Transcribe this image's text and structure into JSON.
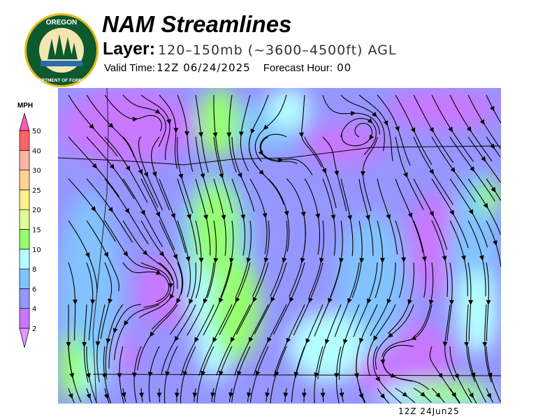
{
  "header": {
    "title": "NAM Streamlines",
    "layer_label": "Layer:",
    "layer_value": "120–150mb (~3600–4500ft) AGL",
    "valid_label": "Valid Time:",
    "valid_value": "12Z 06/24/2025",
    "forecast_hour_label": "Forecast Hour:",
    "forecast_hour_value": "00"
  },
  "logo": {
    "text_top": "OREGON",
    "text_bottom": "DEPARTMENT OF FORESTRY"
  },
  "legend": {
    "unit": "MPH",
    "levels": [
      "2",
      "4",
      "6",
      "8",
      "10",
      "15",
      "20",
      "25",
      "30",
      "40",
      "50"
    ],
    "colors": [
      "#c878ff",
      "#9696ff",
      "#82c3ff",
      "#b4ffff",
      "#96ff6e",
      "#dcff96",
      "#fff08c",
      "#ffd296",
      "#ffb4a0",
      "#ff6464"
    ],
    "under_color": "#e696ff",
    "over_color": "#ff5ab4"
  },
  "footer": {
    "timestamp": "12Z  24Jun25"
  }
}
